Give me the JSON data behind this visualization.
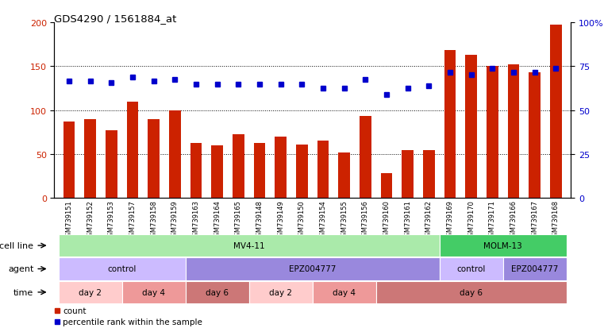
{
  "title": "GDS4290 / 1561884_at",
  "samples": [
    "GSM739151",
    "GSM739152",
    "GSM739153",
    "GSM739157",
    "GSM739158",
    "GSM739159",
    "GSM739163",
    "GSM739164",
    "GSM739165",
    "GSM739148",
    "GSM739149",
    "GSM739150",
    "GSM739154",
    "GSM739155",
    "GSM739156",
    "GSM739160",
    "GSM739161",
    "GSM739162",
    "GSM739169",
    "GSM739170",
    "GSM739171",
    "GSM739166",
    "GSM739167",
    "GSM739168"
  ],
  "counts": [
    87,
    90,
    77,
    110,
    90,
    100,
    63,
    60,
    73,
    63,
    70,
    61,
    65,
    52,
    93,
    28,
    55,
    55,
    168,
    163,
    150,
    152,
    143,
    197
  ],
  "percentile_ranks": [
    133,
    133,
    131,
    138,
    133,
    135,
    130,
    130,
    130,
    130,
    130,
    130,
    125,
    125,
    135,
    118,
    125,
    128,
    143,
    140,
    148,
    143,
    143,
    148
  ],
  "bar_color": "#cc2200",
  "dot_color": "#0000cc",
  "ylim_left": [
    0,
    200
  ],
  "ylim_right": [
    0,
    100
  ],
  "yticks_left": [
    0,
    50,
    100,
    150,
    200
  ],
  "yticks_right": [
    0,
    25,
    50,
    75,
    100
  ],
  "ytick_labels_right": [
    "0",
    "25",
    "50",
    "75",
    "100%"
  ],
  "grid_values": [
    50,
    100,
    150
  ],
  "cell_line_groups": [
    {
      "label": "MV4-11",
      "start": 0,
      "end": 18,
      "color": "#aaeaaa"
    },
    {
      "label": "MOLM-13",
      "start": 18,
      "end": 24,
      "color": "#44cc66"
    }
  ],
  "agent_groups": [
    {
      "label": "control",
      "start": 0,
      "end": 6,
      "color": "#ccbbff"
    },
    {
      "label": "EPZ004777",
      "start": 6,
      "end": 18,
      "color": "#9988dd"
    },
    {
      "label": "control",
      "start": 18,
      "end": 21,
      "color": "#ccbbff"
    },
    {
      "label": "EPZ004777",
      "start": 21,
      "end": 24,
      "color": "#9988dd"
    }
  ],
  "time_groups": [
    {
      "label": "day 2",
      "start": 0,
      "end": 3,
      "color": "#ffcccc"
    },
    {
      "label": "day 4",
      "start": 3,
      "end": 6,
      "color": "#ee9999"
    },
    {
      "label": "day 6",
      "start": 6,
      "end": 9,
      "color": "#cc7777"
    },
    {
      "label": "day 2",
      "start": 9,
      "end": 12,
      "color": "#ffcccc"
    },
    {
      "label": "day 4",
      "start": 12,
      "end": 15,
      "color": "#ee9999"
    },
    {
      "label": "day 6",
      "start": 15,
      "end": 24,
      "color": "#cc7777"
    }
  ],
  "bg_color": "#ffffff",
  "axis_label_color_left": "#cc2200",
  "axis_label_color_right": "#0000cc",
  "cell_line_row_label": "cell line",
  "agent_row_label": "agent",
  "time_row_label": "time"
}
